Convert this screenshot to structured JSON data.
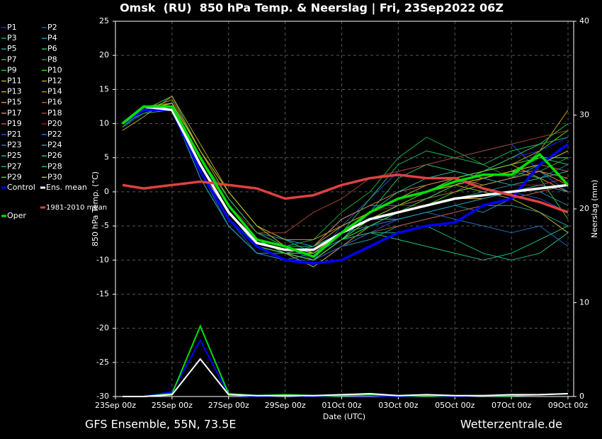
{
  "chart_data": {
    "type": "line",
    "title": "Omsk  (RU)  850 hPa Temp. & Neerslag | Fri, 23Sep2022 06Z",
    "ylabel": "850 hPa Temp. (°C)",
    "y2label": "Neerslag (mm)",
    "xlabel": "Date (UTC)",
    "footer_left": "GFS Ensemble, 55N, 73.5E",
    "footer_right": "Wetterzentrale.de",
    "xlim": [
      0,
      16.2
    ],
    "xticks": [
      {
        "value": 0,
        "label": "23Sep 00z"
      },
      {
        "value": 2,
        "label": "25Sep 00z"
      },
      {
        "value": 4,
        "label": "27Sep 00z"
      },
      {
        "value": 6,
        "label": "29Sep 00z"
      },
      {
        "value": 8,
        "label": "01Oct 00z"
      },
      {
        "value": 10,
        "label": "03Oct 00z"
      },
      {
        "value": 12,
        "label": "05Oct 00z"
      },
      {
        "value": 14,
        "label": "07Oct 00z"
      },
      {
        "value": 16,
        "label": "09Oct 00z"
      }
    ],
    "ylim": [
      -30,
      25
    ],
    "yticks": [
      -30,
      -25,
      -20,
      -15,
      -10,
      -5,
      0,
      5,
      10,
      15,
      20,
      25
    ],
    "y2lim": [
      0,
      40
    ],
    "y2ticks": [
      0,
      10,
      20,
      30,
      40
    ],
    "grid": true,
    "x": [
      0.25,
      1,
      2,
      3,
      4,
      5,
      6,
      7,
      8,
      9,
      10,
      11,
      12,
      13,
      14,
      15,
      16
    ],
    "series": [
      {
        "name": "P1",
        "color": "#2020ff",
        "values": [
          10,
          12,
          12,
          3,
          -4,
          -8,
          -9,
          -9,
          -7,
          -3,
          -1,
          1,
          2,
          3,
          5,
          6,
          8
        ]
      },
      {
        "name": "P2",
        "color": "#1e50c8",
        "values": [
          9.5,
          11.5,
          13,
          5,
          -2,
          -6,
          -8,
          -10,
          -5,
          -1,
          3,
          4,
          5,
          6,
          7,
          3,
          0
        ]
      },
      {
        "name": "P3",
        "color": "#1e90a0",
        "values": [
          10,
          12.5,
          12,
          2,
          -5,
          -9,
          -10,
          -9,
          -6,
          -5,
          -4,
          -3,
          -2,
          -3,
          -1,
          0,
          -2
        ]
      },
      {
        "name": "P4",
        "color": "#2090d0",
        "values": [
          10,
          12,
          13,
          6,
          -1,
          -6,
          -7,
          -8,
          -4,
          -2,
          -2,
          -1,
          0,
          1,
          2,
          4,
          6
        ]
      },
      {
        "name": "P5",
        "color": "#20a0a0",
        "values": [
          9.5,
          12,
          12,
          3,
          -3,
          -8,
          -9,
          -11,
          -8,
          -7,
          -5,
          -4,
          -3,
          -2,
          -2,
          -3,
          -5
        ]
      },
      {
        "name": "P6",
        "color": "#20c060",
        "values": [
          10,
          12,
          14,
          6,
          0,
          -5,
          -7,
          -9,
          -7,
          -3,
          2,
          4,
          3,
          2,
          3,
          5,
          4
        ]
      },
      {
        "name": "P7",
        "color": "#20b080",
        "values": [
          10,
          11.5,
          12,
          4,
          -3,
          -7,
          -9,
          -10,
          -8,
          -6,
          -6,
          -5,
          -7,
          -9,
          -10,
          -9,
          -6
        ]
      },
      {
        "name": "P8",
        "color": "#20a040",
        "values": [
          10,
          12,
          13,
          5,
          -2,
          -7,
          -8,
          -7,
          -3,
          0,
          5,
          8,
          6,
          4,
          2,
          3,
          5
        ]
      },
      {
        "name": "P9",
        "color": "#30c030",
        "values": [
          9.5,
          12,
          12.5,
          3,
          -4,
          -8,
          -9,
          -9,
          -6,
          -4,
          -2,
          -1,
          1,
          2,
          3,
          2,
          -4
        ]
      },
      {
        "name": "P10",
        "color": "#40d020",
        "values": [
          10,
          12.5,
          13,
          5,
          -2,
          -7,
          -9,
          -10,
          -7,
          -5,
          -3,
          -2,
          0,
          1,
          2,
          6,
          9
        ]
      },
      {
        "name": "P11",
        "color": "#b0b020",
        "values": [
          10,
          12,
          12,
          4,
          -3,
          -8,
          -9,
          -9,
          -6,
          -3,
          -1,
          0,
          1,
          0,
          -1,
          -3,
          -6
        ]
      },
      {
        "name": "P12",
        "color": "#c0a020",
        "values": [
          9,
          11,
          14,
          7,
          0,
          -5,
          -7,
          -7,
          -5,
          -3,
          -1,
          1,
          2,
          3,
          4,
          6,
          12
        ]
      },
      {
        "name": "P13",
        "color": "#c8a030",
        "values": [
          10,
          12,
          13,
          5,
          -2,
          -7,
          -9,
          -11,
          -8,
          -5,
          -3,
          -2,
          -1,
          -1,
          0,
          1,
          2
        ]
      },
      {
        "name": "P14",
        "color": "#c09020",
        "values": [
          10,
          12,
          13.5,
          6,
          -1,
          -6,
          -8,
          -9,
          -6,
          -4,
          -2,
          0,
          1,
          2,
          3,
          3,
          1
        ]
      },
      {
        "name": "P15",
        "color": "#d09040",
        "values": [
          10,
          12,
          12,
          3,
          -3,
          -7,
          -8,
          -8,
          -5,
          -3,
          -1,
          0,
          2,
          3,
          4,
          2,
          0
        ]
      },
      {
        "name": "P16",
        "color": "#b06030",
        "values": [
          10,
          12,
          12.5,
          4,
          -3,
          -8,
          -9,
          -10,
          -7,
          -4,
          -2,
          -1,
          0,
          2,
          3,
          4,
          3
        ]
      },
      {
        "name": "P17",
        "color": "#d08050",
        "values": [
          10,
          12,
          13,
          4,
          -3,
          -7,
          -8,
          -8,
          -4,
          -2,
          0,
          1,
          2,
          1,
          2,
          3,
          2
        ]
      },
      {
        "name": "P18",
        "color": "#a04030",
        "values": [
          10,
          12,
          12,
          4,
          -2,
          -6,
          -6,
          -3,
          -1,
          2,
          3,
          4,
          5,
          6,
          7,
          8,
          9
        ]
      },
      {
        "name": "P19",
        "color": "#c05040",
        "values": [
          10,
          12,
          12.5,
          3,
          -4,
          -8,
          -9,
          -10,
          -8,
          -6,
          -5,
          -4,
          -3,
          -2,
          -1,
          0,
          1
        ]
      },
      {
        "name": "P20",
        "color": "#902020",
        "values": [
          10,
          12,
          13,
          5,
          -2,
          -6,
          -8,
          -9,
          -6,
          -3,
          -2,
          -2,
          -1,
          0,
          1,
          1,
          2
        ]
      },
      {
        "name": "P21",
        "color": "#2050c0",
        "values": [
          10,
          12,
          12,
          3,
          -4,
          -9,
          -10,
          -10,
          -8,
          -6,
          -4,
          -3,
          -2,
          -1,
          0,
          -1,
          -3
        ]
      },
      {
        "name": "P22",
        "color": "#2070c0",
        "values": [
          10,
          12,
          12,
          3,
          -5,
          -9,
          -10,
          -9,
          -7,
          -5,
          -4,
          -3,
          -4,
          -5,
          -6,
          -5,
          -8
        ]
      },
      {
        "name": "P23",
        "color": "#2080a0",
        "values": [
          10,
          12,
          12.5,
          4,
          -3,
          -8,
          -9,
          -10,
          -7,
          -5,
          -3,
          -2,
          -1,
          0,
          1,
          2,
          4
        ]
      },
      {
        "name": "P24",
        "color": "#20a0b0",
        "values": [
          10,
          12,
          12,
          2,
          -5,
          -9,
          -9,
          -8,
          -6,
          -4,
          -4,
          -3,
          -2,
          -1,
          0,
          1,
          0
        ]
      },
      {
        "name": "P25",
        "color": "#20b0a0",
        "values": [
          10,
          12,
          13,
          5,
          -2,
          -7,
          -8,
          -9,
          -6,
          -3,
          0,
          2,
          3,
          2,
          1,
          2,
          3
        ]
      },
      {
        "name": "P26",
        "color": "#20c080",
        "values": [
          10,
          12,
          13,
          5,
          -2,
          -7,
          -9,
          -10,
          -7,
          -6,
          -7,
          -8,
          -9,
          -10,
          -9,
          -7,
          -5
        ]
      },
      {
        "name": "P27",
        "color": "#20b060",
        "values": [
          10,
          12,
          13,
          5,
          -1,
          -6,
          -8,
          -8,
          -6,
          -1,
          4,
          6,
          5,
          4,
          6,
          7,
          8
        ]
      },
      {
        "name": "P28",
        "color": "#30c050",
        "values": [
          10,
          12,
          12.5,
          4,
          -3,
          -8,
          -9,
          -10,
          -7,
          -5,
          -3,
          -1,
          1,
          3,
          5,
          7,
          10
        ]
      },
      {
        "name": "P29",
        "color": "#60d020",
        "values": [
          10,
          12,
          12,
          3,
          -4,
          -8,
          -9,
          -10,
          -7,
          -4,
          -2,
          0,
          2,
          3,
          4,
          5,
          5
        ]
      },
      {
        "name": "P30",
        "color": "#c0c020",
        "values": [
          10,
          12,
          13,
          6,
          0,
          -5,
          -8,
          -9,
          -6,
          -3,
          -1,
          0,
          1,
          2,
          3,
          4,
          6
        ]
      },
      {
        "name": "Control",
        "color": "#0000ff",
        "values": [
          10,
          12,
          12,
          3,
          -4,
          -8,
          -10,
          -10.5,
          -10,
          -8,
          -6,
          -5,
          -4.5,
          -2,
          -1,
          4,
          7
        ]
      },
      {
        "name": "Ens. mean",
        "color": "#ffffff",
        "values": [
          10,
          12.5,
          12,
          4,
          -3,
          -7.5,
          -8.5,
          -8.5,
          -6,
          -4,
          -3,
          -2,
          -1,
          -0.5,
          0,
          0.5,
          1
        ]
      },
      {
        "name": "1981-2010 mean",
        "color": "#e04040",
        "values": [
          1,
          0.5,
          1,
          1.5,
          1,
          0.5,
          -1,
          -0.5,
          1,
          2,
          2.5,
          2,
          2,
          0.5,
          -0.5,
          -1.5,
          -3
        ]
      },
      {
        "name": "Oper",
        "color": "#00e000",
        "values": [
          10,
          12.5,
          12.5,
          5,
          -2,
          -7,
          -8,
          -9.5,
          -6,
          -3,
          -1,
          0,
          1.5,
          2.5,
          2.5,
          5.5,
          1
        ]
      }
    ],
    "precip_series": [
      {
        "color": "#0000ff",
        "axis": "y2",
        "values": [
          0,
          0,
          0.5,
          6,
          0.2,
          0,
          0.1,
          0,
          0.1,
          0.1,
          0,
          0.1,
          0,
          0.1,
          0.1,
          0.2,
          0.3
        ]
      },
      {
        "color": "#00e000",
        "axis": "y2",
        "values": [
          0,
          0,
          0.3,
          7.5,
          0.3,
          0.1,
          0.2,
          0.1,
          0.1,
          0.2,
          0.1,
          0.1,
          0.1,
          0.1,
          0.1,
          0.2,
          0.3
        ]
      },
      {
        "color": "#ffffff",
        "axis": "y2",
        "values": [
          0,
          0,
          0.2,
          4,
          0.2,
          0.1,
          0.1,
          0.1,
          0.2,
          0.3,
          0.1,
          0.2,
          0.1,
          0.1,
          0.2,
          0.2,
          0.3
        ]
      }
    ]
  }
}
